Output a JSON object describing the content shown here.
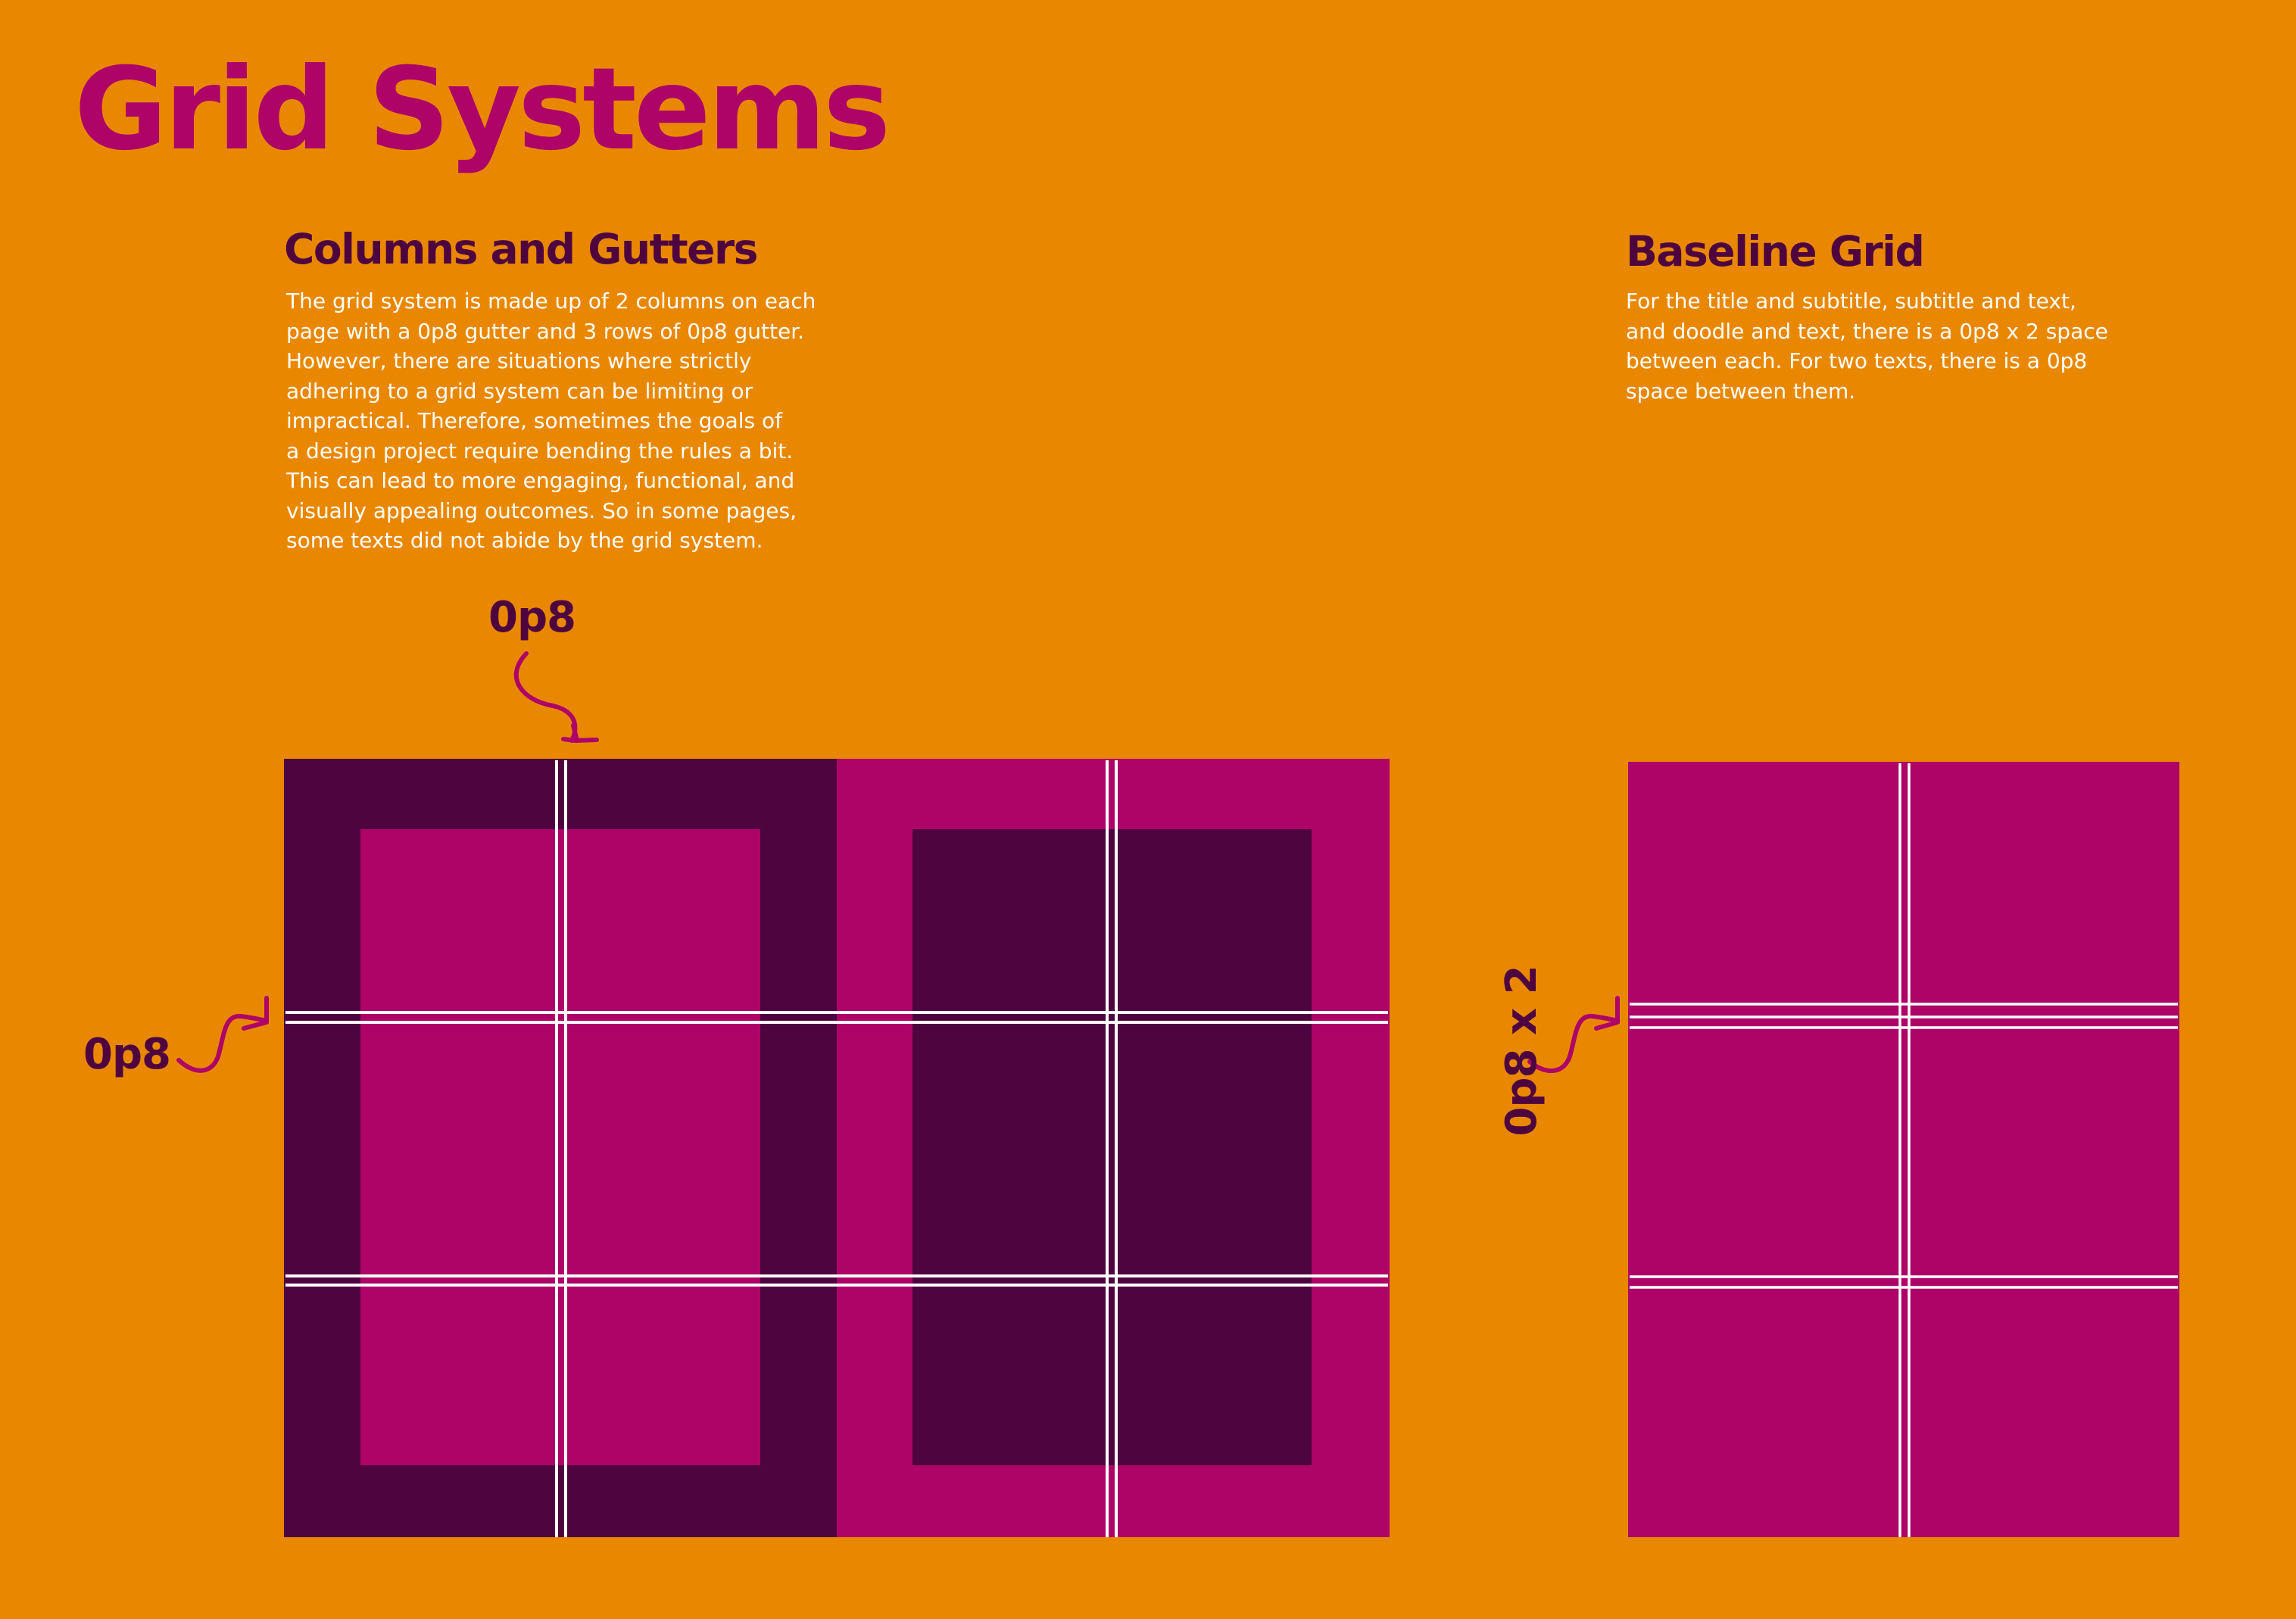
{
  "title": "Grid Systems",
  "colors": {
    "background": "#E98800",
    "magenta": "#AE0467",
    "plum": "#4E043F",
    "text_light": "#FFFFFF",
    "guide_line": "#FFFFFF"
  },
  "columns_section": {
    "heading": "Columns and Gutters",
    "lines": [
      "The grid system is made up of 2 columns on each",
      "page with a 0p8 gutter and 3 rows of 0p8 gutter.",
      "However, there are situations where strictly",
      "adhering to a grid system can be limiting or",
      "impractical. Therefore, sometimes the goals of",
      "a design project require bending the rules a bit.",
      "This can lead to more engaging, functional, and",
      "visually appealing outcomes. So in some pages,",
      "some texts did not abide by the grid system."
    ]
  },
  "baseline_section": {
    "heading": "Baseline Grid",
    "lines": [
      "For the title and subtitle, subtitle and text,",
      "and doodle and text, there is a 0p8 x 2 space",
      "between each. For two texts, there is a 0p8",
      "space between them."
    ]
  },
  "annotations": {
    "gutter_top": "0p8",
    "gutter_left": "0p8",
    "baseline_label": "0p8 x 2"
  },
  "icons": [
    "curved-arrow-down-icon",
    "curved-arrow-right-icon",
    "curved-arrow-right-icon"
  ]
}
